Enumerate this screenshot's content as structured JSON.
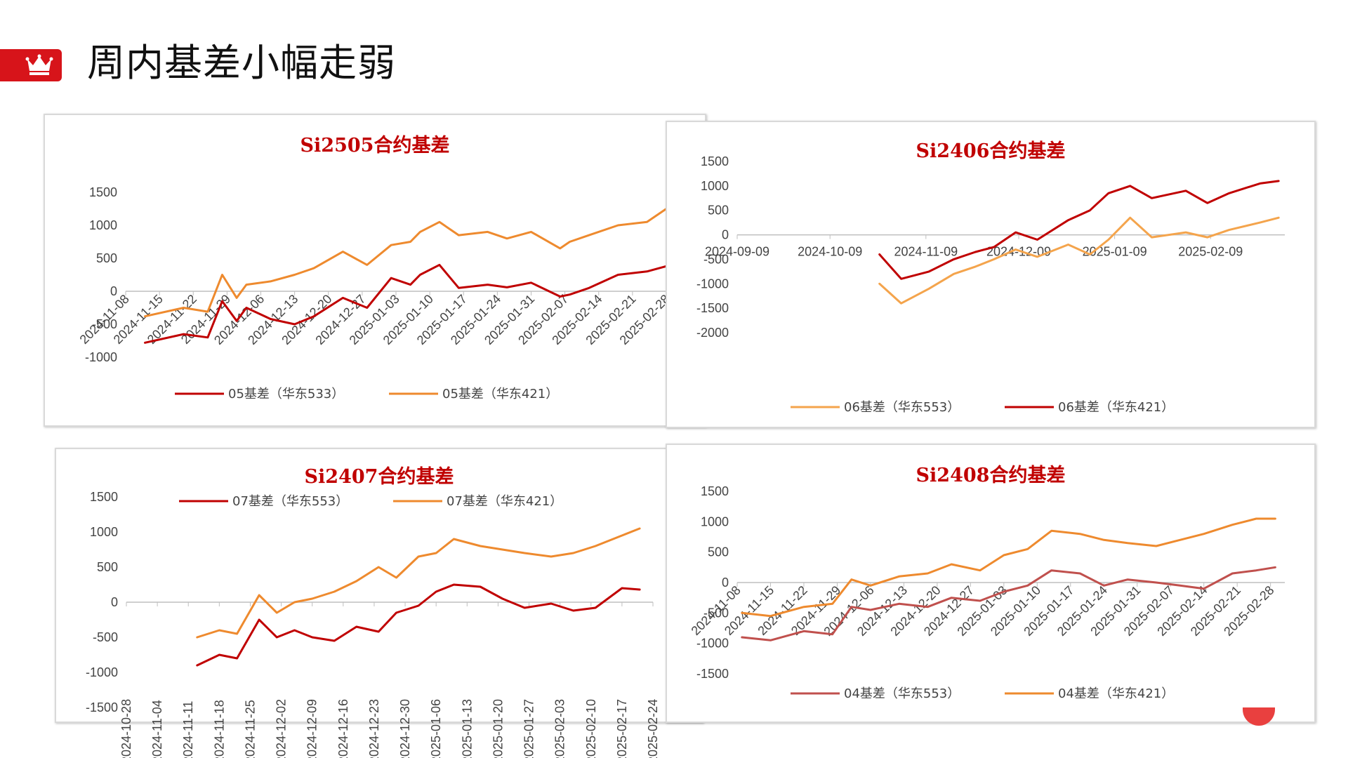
{
  "header": {
    "title": "周内基差小幅走弱",
    "icon": "crown-icon",
    "accent_color": "#d7141a"
  },
  "chart_data": [
    {
      "id": "si2505",
      "type": "line",
      "title": "Si2505合约基差",
      "ylim": [
        -1000,
        1500
      ],
      "yticks": [
        1500,
        1000,
        500,
        0,
        -500,
        -1000
      ],
      "x_range": [
        "2024-11-08",
        "2025-02-28"
      ],
      "xticks": [
        "2024-11-08",
        "2024-11-15",
        "2024-11-22",
        "2024-11-29",
        "2024-12-06",
        "2024-12-13",
        "2024-12-20",
        "2024-12-27",
        "2025-01-03",
        "2025-01-10",
        "2025-01-17",
        "2025-01-24",
        "2025-01-31",
        "2025-02-07",
        "2025-02-14",
        "2025-02-21",
        "2025-02-28"
      ],
      "series": [
        {
          "name": "05基差（华东533）",
          "color": "#c00000",
          "x": [
            "2024-11-12",
            "2024-11-20",
            "2024-11-25",
            "2024-11-28",
            "2024-12-01",
            "2024-12-03",
            "2024-12-08",
            "2024-12-13",
            "2024-12-17",
            "2024-12-23",
            "2024-12-28",
            "2025-01-02",
            "2025-01-06",
            "2025-01-08",
            "2025-01-12",
            "2025-01-16",
            "2025-01-22",
            "2025-01-26",
            "2025-01-31",
            "2025-02-06",
            "2025-02-08",
            "2025-02-12",
            "2025-02-18",
            "2025-02-24",
            "2025-02-28"
          ],
          "values": [
            -780,
            -650,
            -700,
            -150,
            -450,
            -250,
            -420,
            -500,
            -380,
            -100,
            -250,
            200,
            100,
            250,
            400,
            50,
            100,
            60,
            130,
            -80,
            -50,
            50,
            250,
            300,
            380
          ]
        },
        {
          "name": "05基差（华东421）",
          "color": "#ee8a2e",
          "x": [
            "2024-11-12",
            "2024-11-20",
            "2024-11-25",
            "2024-11-28",
            "2024-12-01",
            "2024-12-03",
            "2024-12-08",
            "2024-12-13",
            "2024-12-17",
            "2024-12-23",
            "2024-12-28",
            "2025-01-02",
            "2025-01-06",
            "2025-01-08",
            "2025-01-12",
            "2025-01-16",
            "2025-01-22",
            "2025-01-26",
            "2025-01-31",
            "2025-02-06",
            "2025-02-08",
            "2025-02-12",
            "2025-02-18",
            "2025-02-24",
            "2025-02-28"
          ],
          "values": [
            -380,
            -250,
            -310,
            250,
            -100,
            100,
            150,
            250,
            350,
            600,
            400,
            700,
            750,
            900,
            1050,
            850,
            900,
            800,
            900,
            650,
            750,
            850,
            1000,
            1050,
            1250
          ]
        }
      ],
      "legend": "bottom"
    },
    {
      "id": "si2406",
      "type": "line",
      "title": "Si2406合约基差",
      "ylim": [
        -2000,
        1500
      ],
      "yticks": [
        1500,
        1000,
        500,
        0,
        -500,
        -1000,
        -1500,
        -2000
      ],
      "x_range": [
        "2024-09-09",
        "2025-03-05"
      ],
      "xticks": [
        "2024-09-09",
        "2024-10-09",
        "2024-11-09",
        "2024-12-09",
        "2025-01-09",
        "2025-02-09"
      ],
      "series": [
        {
          "name": "06基差（华东553）",
          "color": "#f4a44c",
          "x": [
            "2024-10-25",
            "2024-11-01",
            "2024-11-10",
            "2024-11-18",
            "2024-11-25",
            "2024-12-01",
            "2024-12-08",
            "2024-12-15",
            "2024-12-25",
            "2025-01-01",
            "2025-01-07",
            "2025-01-14",
            "2025-01-21",
            "2025-02-01",
            "2025-02-08",
            "2025-02-15",
            "2025-02-25",
            "2025-03-03"
          ],
          "values": [
            -1000,
            -1400,
            -1100,
            -800,
            -650,
            -500,
            -300,
            -450,
            -200,
            -400,
            -100,
            350,
            -50,
            50,
            -50,
            100,
            250,
            350
          ]
        },
        {
          "name": "06基差（华东421）",
          "color": "#c00000",
          "x": [
            "2024-10-25",
            "2024-11-01",
            "2024-11-10",
            "2024-11-18",
            "2024-11-25",
            "2024-12-01",
            "2024-12-08",
            "2024-12-15",
            "2024-12-25",
            "2025-01-01",
            "2025-01-07",
            "2025-01-14",
            "2025-01-21",
            "2025-02-01",
            "2025-02-08",
            "2025-02-15",
            "2025-02-25",
            "2025-03-03"
          ],
          "values": [
            -400,
            -900,
            -750,
            -500,
            -350,
            -250,
            50,
            -100,
            300,
            500,
            850,
            1000,
            750,
            900,
            650,
            850,
            1050,
            1100
          ]
        }
      ],
      "legend": "bottom"
    },
    {
      "id": "si2407",
      "type": "line",
      "title": "Si2407合约基差",
      "ylim": [
        -1500,
        1500
      ],
      "yticks": [
        1500,
        1000,
        500,
        0,
        -500,
        -1000,
        -1500
      ],
      "x_range": [
        "2024-10-28",
        "2025-02-24"
      ],
      "xticks": [
        "2024-10-28",
        "2024-11-04",
        "2024-11-11",
        "2024-11-18",
        "2024-11-25",
        "2024-12-02",
        "2024-12-09",
        "2024-12-16",
        "2024-12-23",
        "2024-12-30",
        "2025-01-06",
        "2025-01-13",
        "2025-01-20",
        "2025-01-27",
        "2025-02-03",
        "2025-02-10",
        "2025-02-17",
        "2025-02-24"
      ],
      "series": [
        {
          "name": "07基差（华东553）",
          "color": "#c00000",
          "x": [
            "2024-11-13",
            "2024-11-18",
            "2024-11-22",
            "2024-11-27",
            "2024-12-01",
            "2024-12-05",
            "2024-12-09",
            "2024-12-14",
            "2024-12-19",
            "2024-12-24",
            "2024-12-28",
            "2025-01-02",
            "2025-01-06",
            "2025-01-10",
            "2025-01-16",
            "2025-01-21",
            "2025-01-26",
            "2025-02-01",
            "2025-02-06",
            "2025-02-11",
            "2025-02-17",
            "2025-02-21"
          ],
          "values": [
            -900,
            -750,
            -800,
            -250,
            -500,
            -400,
            -500,
            -550,
            -350,
            -420,
            -150,
            -50,
            150,
            250,
            220,
            50,
            -80,
            -20,
            -120,
            -80,
            200,
            180
          ]
        },
        {
          "name": "07基差（华东421）",
          "color": "#ee8a2e",
          "x": [
            "2024-11-13",
            "2024-11-18",
            "2024-11-22",
            "2024-11-27",
            "2024-12-01",
            "2024-12-05",
            "2024-12-09",
            "2024-12-14",
            "2024-12-19",
            "2024-12-24",
            "2024-12-28",
            "2025-01-02",
            "2025-01-06",
            "2025-01-10",
            "2025-01-16",
            "2025-01-21",
            "2025-01-26",
            "2025-02-01",
            "2025-02-06",
            "2025-02-11",
            "2025-02-17",
            "2025-02-21"
          ],
          "values": [
            -500,
            -400,
            -450,
            100,
            -150,
            0,
            50,
            150,
            300,
            500,
            350,
            650,
            700,
            900,
            800,
            750,
            700,
            650,
            700,
            800,
            950,
            1050
          ]
        }
      ],
      "legend": "top"
    },
    {
      "id": "si2408",
      "type": "line",
      "title": "Si2408合约基差",
      "ylim": [
        -1500,
        1500
      ],
      "yticks": [
        1500,
        1000,
        500,
        0,
        -500,
        -1000,
        -1500
      ],
      "x_range": [
        "2024-11-08",
        "2025-03-03"
      ],
      "xticks": [
        "2024-11-08",
        "2024-11-15",
        "2024-11-22",
        "2024-11-29",
        "2024-12-06",
        "2024-12-13",
        "2024-12-20",
        "2024-12-27",
        "2025-01-03",
        "2025-01-10",
        "2025-01-17",
        "2025-01-24",
        "2025-01-31",
        "2025-02-07",
        "2025-02-14",
        "2025-02-21",
        "2025-02-28"
      ],
      "series": [
        {
          "name": "04基差（华东553）",
          "color": "#c0504d",
          "x": [
            "2024-11-09",
            "2024-11-15",
            "2024-11-22",
            "2024-11-28",
            "2024-12-02",
            "2024-12-06",
            "2024-12-12",
            "2024-12-18",
            "2024-12-23",
            "2024-12-29",
            "2025-01-03",
            "2025-01-08",
            "2025-01-13",
            "2025-01-19",
            "2025-01-24",
            "2025-01-29",
            "2025-02-04",
            "2025-02-09",
            "2025-02-14",
            "2025-02-20",
            "2025-02-25",
            "2025-03-01"
          ],
          "values": [
            -900,
            -950,
            -800,
            -850,
            -400,
            -450,
            -350,
            -400,
            -250,
            -300,
            -150,
            -50,
            200,
            150,
            -50,
            50,
            0,
            -50,
            -100,
            150,
            200,
            250
          ]
        },
        {
          "name": "04基差（华东421）",
          "color": "#ee8a2e",
          "x": [
            "2024-11-09",
            "2024-11-15",
            "2024-11-22",
            "2024-11-28",
            "2024-12-02",
            "2024-12-06",
            "2024-12-12",
            "2024-12-18",
            "2024-12-23",
            "2024-12-29",
            "2025-01-03",
            "2025-01-08",
            "2025-01-13",
            "2025-01-19",
            "2025-01-24",
            "2025-01-29",
            "2025-02-04",
            "2025-02-09",
            "2025-02-14",
            "2025-02-20",
            "2025-02-25",
            "2025-03-01"
          ],
          "values": [
            -500,
            -550,
            -400,
            -350,
            50,
            -50,
            100,
            150,
            300,
            200,
            450,
            550,
            850,
            800,
            700,
            650,
            600,
            700,
            800,
            950,
            1050,
            1050
          ]
        }
      ],
      "legend": "bottom"
    }
  ]
}
